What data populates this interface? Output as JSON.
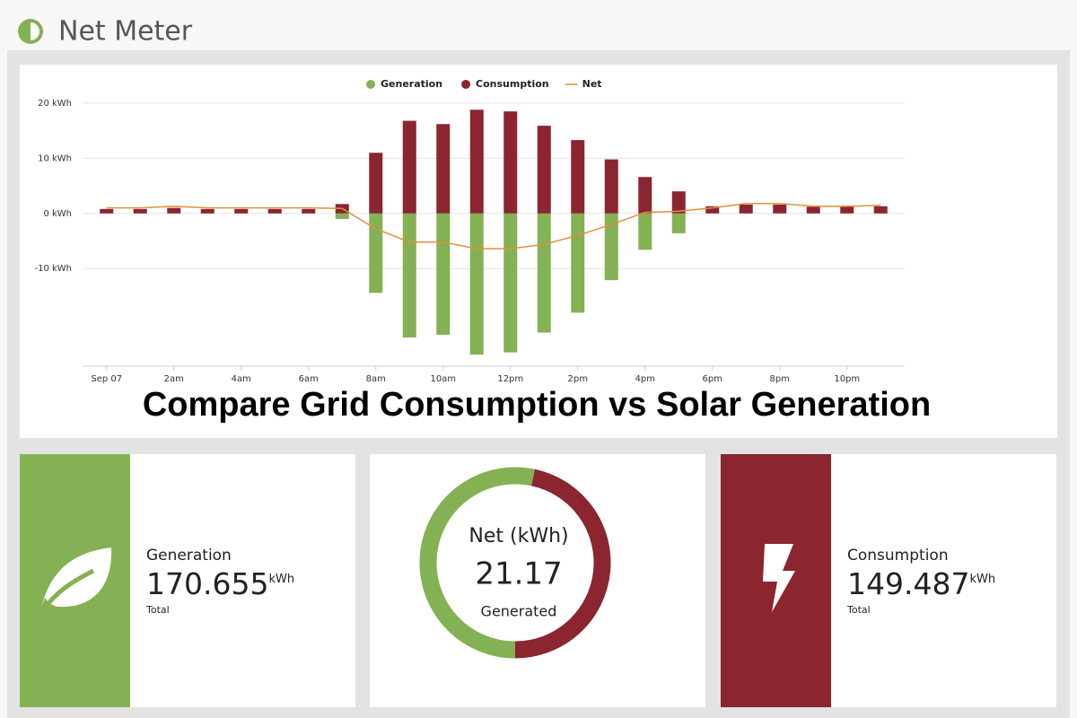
{
  "header": {
    "title": "Net Meter"
  },
  "chart_data": {
    "type": "bar",
    "annotation": "Compare Grid Consumption vs Solar Generation",
    "categories": [
      "Sep 07",
      null,
      "2am",
      null,
      "4am",
      null,
      "6am",
      null,
      "8am",
      null,
      "10am",
      null,
      "12pm",
      null,
      "2pm",
      null,
      "4pm",
      null,
      "6pm",
      null,
      "8pm",
      null,
      "10pm",
      null
    ],
    "series": [
      {
        "name": "Generation",
        "color": "#84b153",
        "values": [
          0,
          0,
          0,
          0,
          0,
          0,
          0,
          -1.0,
          -14.4,
          -22.5,
          -22.0,
          -25.6,
          -25.2,
          -21.6,
          -18.0,
          -12.1,
          -6.6,
          -3.6,
          0,
          0,
          0,
          0,
          0,
          0
        ]
      },
      {
        "name": "Consumption",
        "color": "#8b2530",
        "values": [
          0.8,
          0.8,
          1.0,
          0.8,
          0.8,
          0.8,
          0.8,
          1.7,
          11.0,
          16.8,
          16.2,
          18.8,
          18.5,
          15.9,
          13.3,
          9.8,
          6.6,
          4.0,
          1.3,
          1.6,
          1.6,
          1.2,
          1.2,
          1.3
        ]
      },
      {
        "name": "Net",
        "color": "#e0913a",
        "type": "line",
        "values": [
          1.0,
          1.0,
          1.3,
          1.0,
          1.0,
          1.0,
          1.0,
          0.9,
          -2.8,
          -5.2,
          -5.2,
          -6.4,
          -6.4,
          -5.6,
          -4.0,
          -2.0,
          0.2,
          0.4,
          1.0,
          1.8,
          1.8,
          1.3,
          1.3,
          1.5
        ]
      }
    ],
    "ylim": [
      -27.7,
      20.8
    ],
    "yticks": [
      {
        "value": 20,
        "label": "20 kWh"
      },
      {
        "value": 10,
        "label": "10 kWh"
      },
      {
        "value": 0,
        "label": "0 kWh"
      },
      {
        "value": -10,
        "label": "-10 kWh"
      }
    ],
    "grid": true,
    "legend": "top"
  },
  "cards": {
    "generation": {
      "label": "Generation",
      "value": 170.655,
      "unit": "kWh",
      "note": "Total"
    },
    "net": {
      "label": "Net (kWh)",
      "value": 21.17,
      "note": "Generated"
    },
    "consumption": {
      "label": "Consumption",
      "value": 149.487,
      "unit": "kWh",
      "note": "Total"
    }
  }
}
